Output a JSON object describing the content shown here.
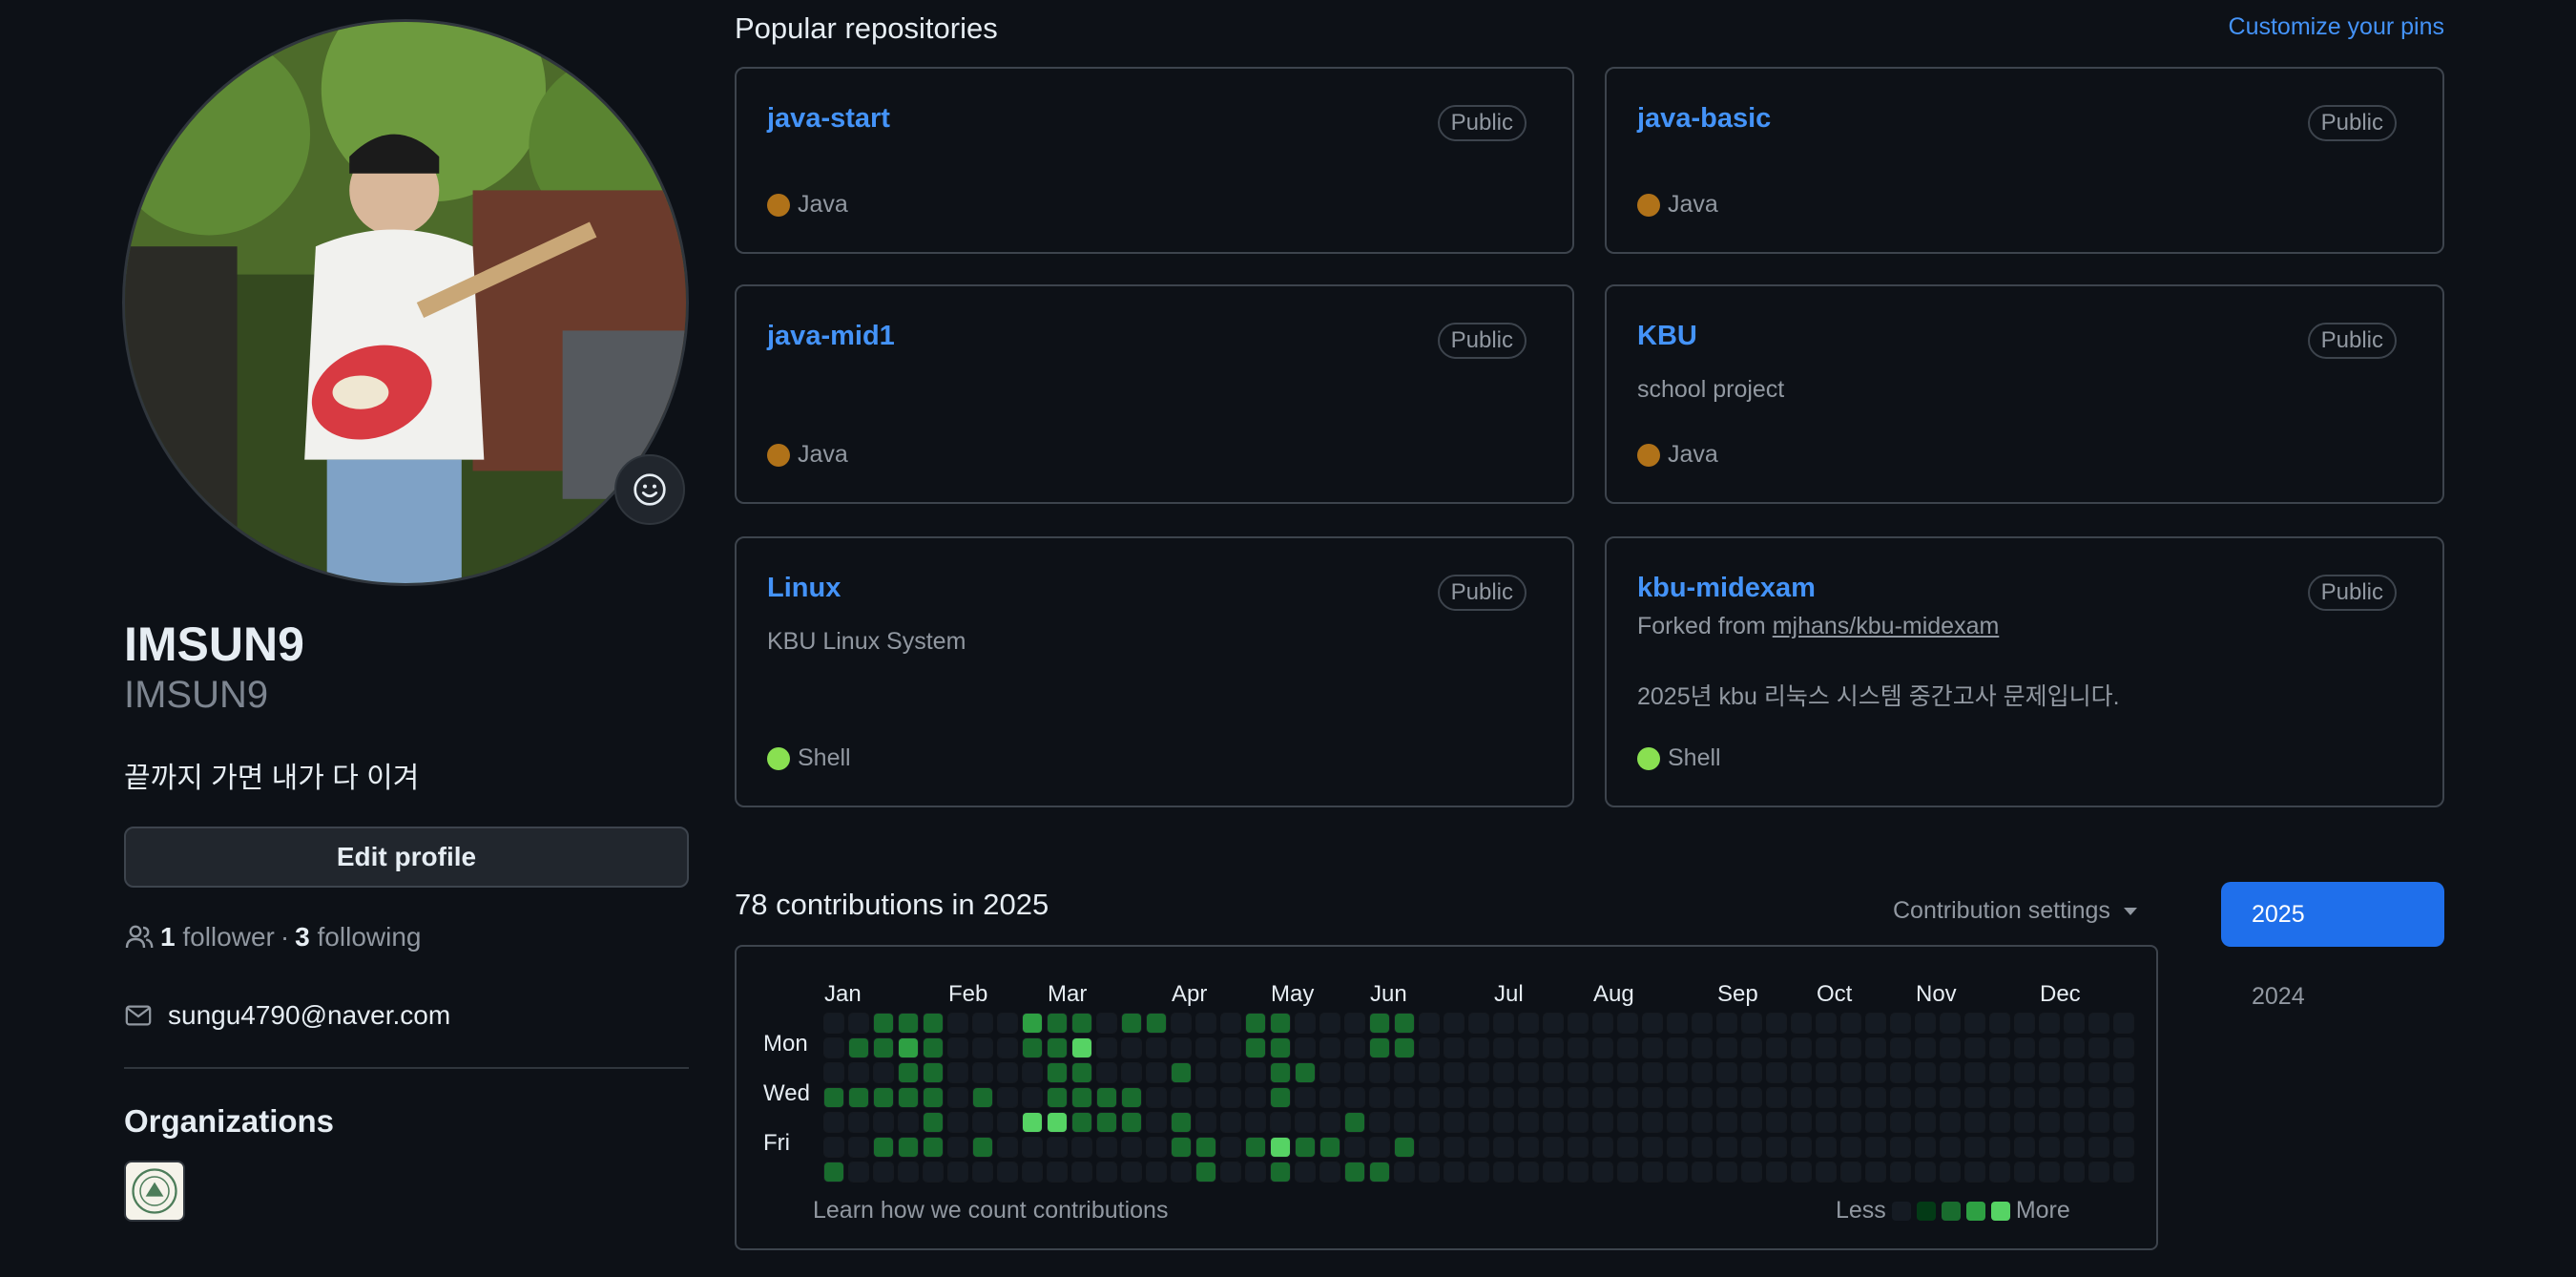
{
  "profile": {
    "full_name": "IMSUN9",
    "username": "IMSUN9",
    "bio": "끝까지 가면 내가 다 이겨",
    "edit_label": "Edit profile",
    "followers_count": "1",
    "followers_label": "follower",
    "following_count": "3",
    "following_label": "following",
    "separator": "·",
    "email": "sungu4790@naver.com",
    "organizations_title": "Organizations"
  },
  "popular": {
    "title": "Popular repositories",
    "customize_label": "Customize your pins",
    "repos": [
      {
        "name": "java-start",
        "badge": "Public",
        "description": "",
        "language": "Java",
        "lang_color": "#b07219"
      },
      {
        "name": "java-basic",
        "badge": "Public",
        "description": "",
        "language": "Java",
        "lang_color": "#b07219"
      },
      {
        "name": "java-mid1",
        "badge": "Public",
        "description": "",
        "language": "Java",
        "lang_color": "#b07219"
      },
      {
        "name": "KBU",
        "badge": "Public",
        "description": "school project",
        "language": "Java",
        "lang_color": "#b07219"
      },
      {
        "name": "Linux",
        "badge": "Public",
        "description": "KBU Linux System",
        "language": "Shell",
        "lang_color": "#89e051"
      },
      {
        "name": "kbu-midexam",
        "badge": "Public",
        "forked_prefix": "Forked from",
        "forked_from": "mjhans/kbu-midexam",
        "description": "2025년 kbu 리눅스 시스템 중간고사 문제입니다.",
        "language": "Shell",
        "lang_color": "#89e051"
      }
    ]
  },
  "contributions": {
    "title": "78 contributions in 2025",
    "settings_label": "Contribution settings",
    "months": [
      "Jan",
      "Feb",
      "Mar",
      "Apr",
      "May",
      "Jun",
      "Jul",
      "Aug",
      "Sep",
      "Oct",
      "Nov",
      "Dec"
    ],
    "day_labels": [
      "Mon",
      "Wed",
      "Fri"
    ],
    "learn_label": "Learn how we count contributions",
    "legend_less": "Less",
    "legend_more": "More",
    "level_colors": [
      "#151b23",
      "#033a16",
      "#196c2e",
      "#2ea043",
      "#56d364"
    ],
    "weeks": [
      [
        0,
        0,
        0,
        2,
        0,
        0,
        2
      ],
      [
        0,
        2,
        0,
        2,
        0,
        0,
        0
      ],
      [
        2,
        2,
        0,
        2,
        0,
        2,
        0
      ],
      [
        2,
        3,
        2,
        2,
        0,
        2,
        0
      ],
      [
        2,
        2,
        2,
        2,
        2,
        2,
        0
      ],
      [
        0,
        0,
        0,
        0,
        0,
        0,
        0
      ],
      [
        0,
        0,
        0,
        2,
        0,
        2,
        0
      ],
      [
        0,
        0,
        0,
        0,
        0,
        0,
        0
      ],
      [
        3,
        2,
        0,
        0,
        4,
        0,
        0
      ],
      [
        2,
        2,
        2,
        2,
        4,
        0,
        0
      ],
      [
        2,
        4,
        2,
        2,
        2,
        0,
        0
      ],
      [
        0,
        0,
        0,
        2,
        2,
        0,
        0
      ],
      [
        2,
        0,
        0,
        2,
        2,
        0,
        0
      ],
      [
        2,
        0,
        0,
        0,
        0,
        0,
        0
      ],
      [
        0,
        0,
        2,
        0,
        2,
        2,
        0
      ],
      [
        0,
        0,
        0,
        0,
        0,
        2,
        2
      ],
      [
        0,
        0,
        0,
        0,
        0,
        0,
        0
      ],
      [
        2,
        2,
        0,
        0,
        0,
        2,
        0
      ],
      [
        2,
        2,
        2,
        2,
        0,
        4,
        2
      ],
      [
        0,
        0,
        2,
        0,
        0,
        2,
        0
      ],
      [
        0,
        0,
        0,
        0,
        0,
        2,
        0
      ],
      [
        0,
        0,
        0,
        0,
        2,
        0,
        2
      ],
      [
        2,
        2,
        0,
        0,
        0,
        0,
        2
      ],
      [
        2,
        2,
        0,
        0,
        0,
        2,
        0
      ],
      [
        0,
        0,
        0,
        0,
        0,
        0,
        0
      ],
      [
        0,
        0,
        0,
        0,
        0,
        0,
        0
      ],
      [
        0,
        0,
        0,
        0,
        0,
        0,
        0
      ],
      [
        0,
        0,
        0,
        0,
        0,
        0,
        0
      ],
      [
        0,
        0,
        0,
        0,
        0,
        0,
        0
      ],
      [
        0,
        0,
        0,
        0,
        0,
        0,
        0
      ],
      [
        0,
        0,
        0,
        0,
        0,
        0,
        0
      ],
      [
        0,
        0,
        0,
        0,
        0,
        0,
        0
      ],
      [
        0,
        0,
        0,
        0,
        0,
        0,
        0
      ],
      [
        0,
        0,
        0,
        0,
        0,
        0,
        0
      ],
      [
        0,
        0,
        0,
        0,
        0,
        0,
        0
      ],
      [
        0,
        0,
        0,
        0,
        0,
        0,
        0
      ],
      [
        0,
        0,
        0,
        0,
        0,
        0,
        0
      ],
      [
        0,
        0,
        0,
        0,
        0,
        0,
        0
      ],
      [
        0,
        0,
        0,
        0,
        0,
        0,
        0
      ],
      [
        0,
        0,
        0,
        0,
        0,
        0,
        0
      ],
      [
        0,
        0,
        0,
        0,
        0,
        0,
        0
      ],
      [
        0,
        0,
        0,
        0,
        0,
        0,
        0
      ],
      [
        0,
        0,
        0,
        0,
        0,
        0,
        0
      ],
      [
        0,
        0,
        0,
        0,
        0,
        0,
        0
      ],
      [
        0,
        0,
        0,
        0,
        0,
        0,
        0
      ],
      [
        0,
        0,
        0,
        0,
        0,
        0,
        0
      ],
      [
        0,
        0,
        0,
        0,
        0,
        0,
        0
      ],
      [
        0,
        0,
        0,
        0,
        0,
        0,
        0
      ],
      [
        0,
        0,
        0,
        0,
        0,
        0,
        0
      ],
      [
        0,
        0,
        0,
        0,
        0,
        0,
        0
      ],
      [
        0,
        0,
        0,
        0,
        0,
        0,
        0
      ],
      [
        0,
        0,
        0,
        0,
        0,
        0,
        0
      ],
      [
        0,
        0,
        0,
        0,
        0,
        0,
        0
      ]
    ],
    "years": [
      "2025",
      "2024"
    ],
    "active_year": "2025"
  },
  "colors": {
    "accent": "#4493f8",
    "year_active_bg": "#1f6feb"
  }
}
